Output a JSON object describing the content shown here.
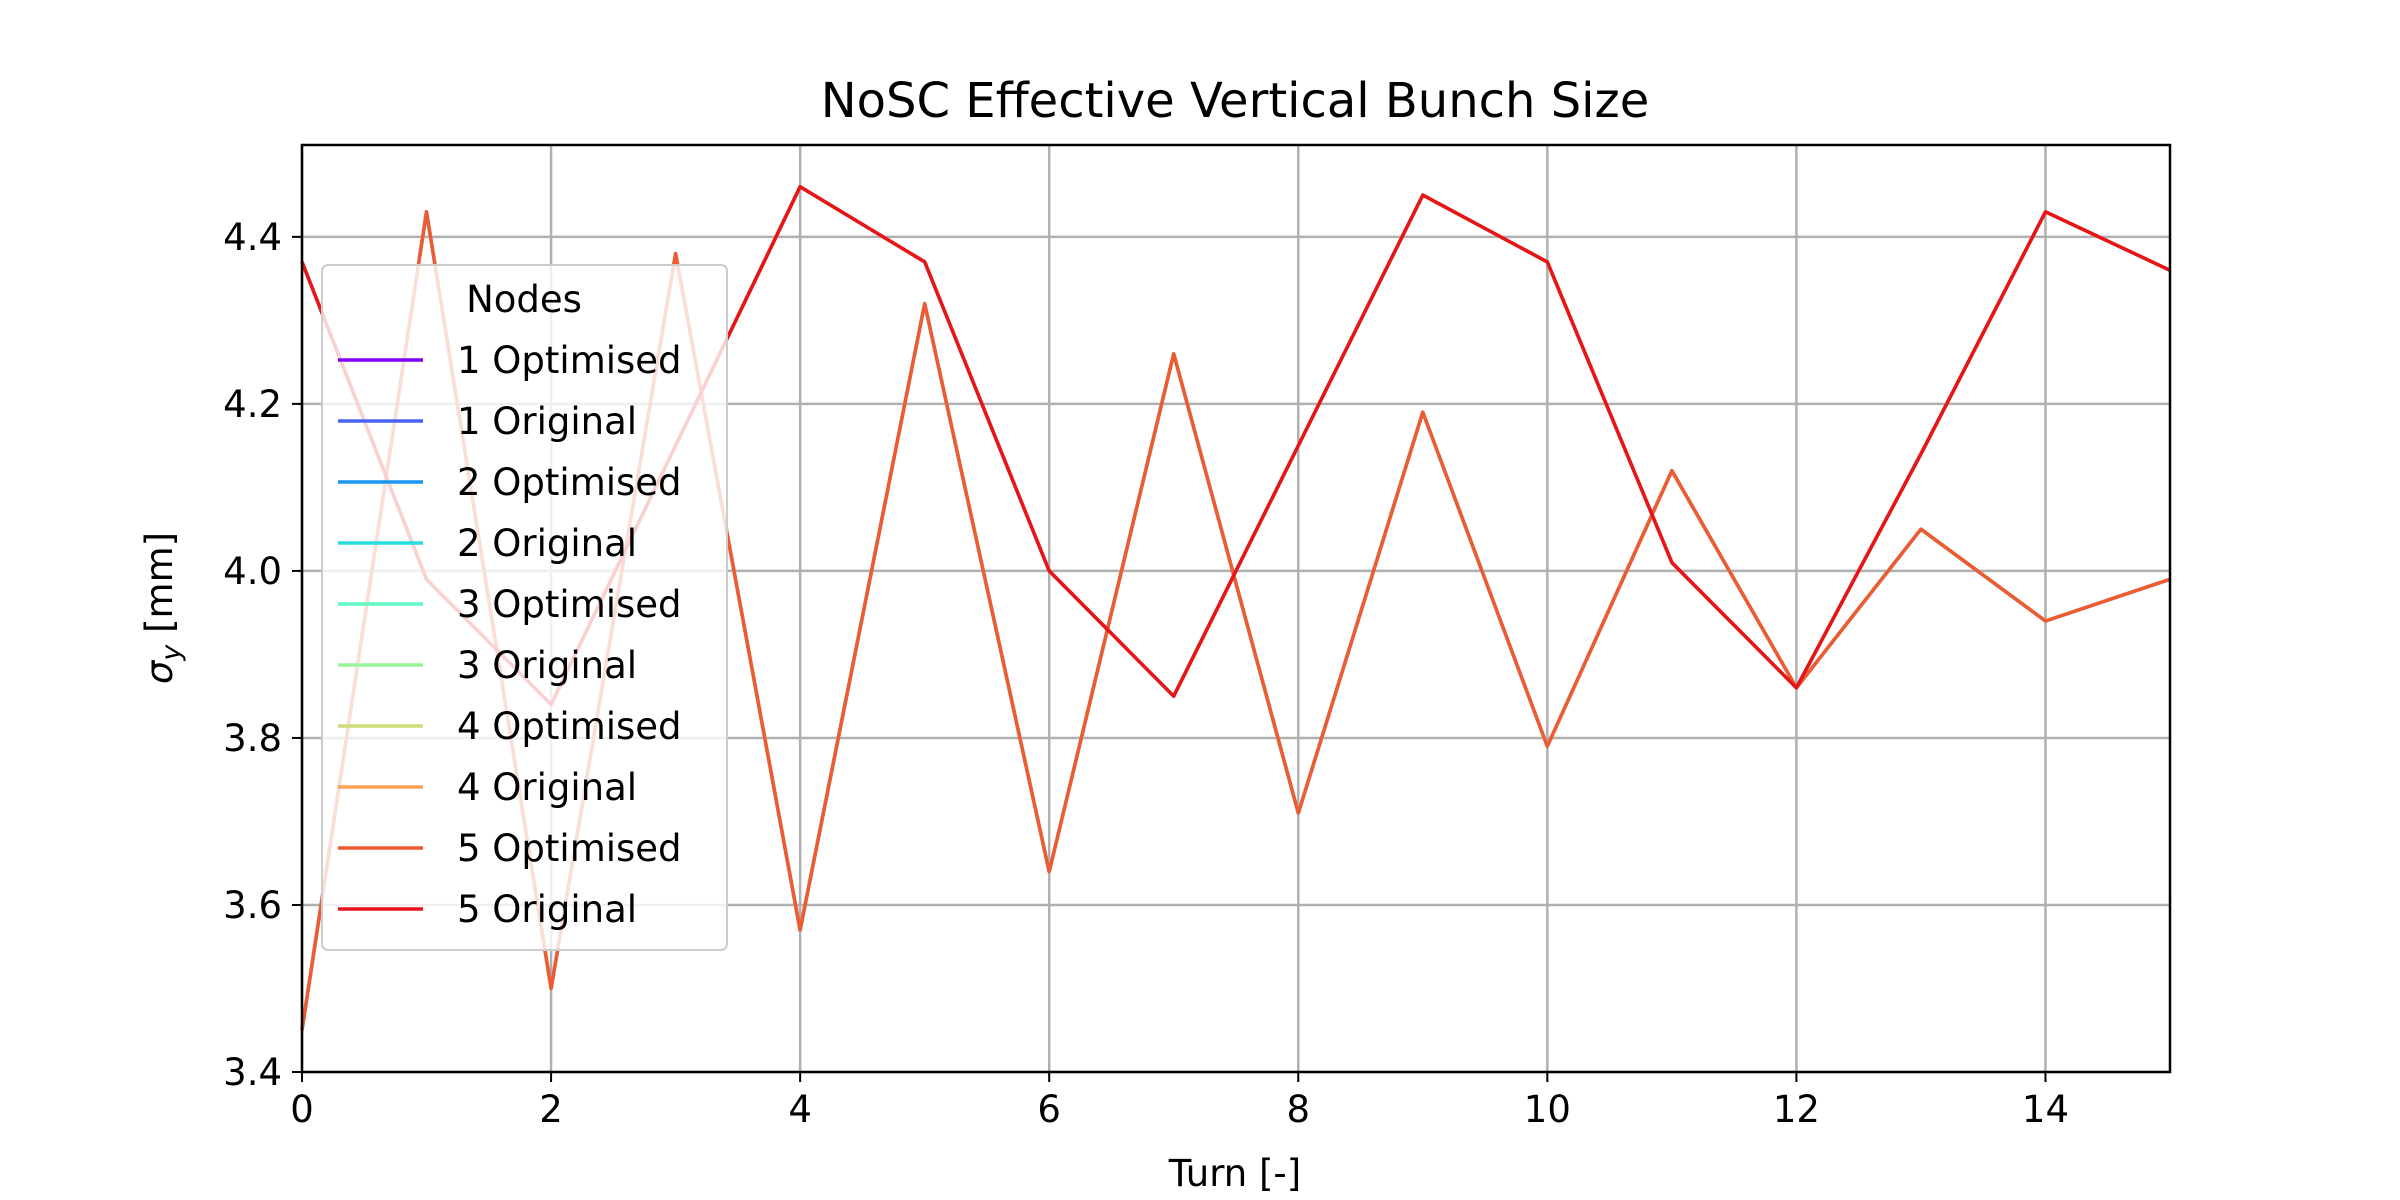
{
  "chart_data": {
    "type": "line",
    "title": "NoSC Effective Vertical Bunch Size",
    "xlabel": "Turn [-]",
    "ylabel_symbol": "σ",
    "ylabel_subscript": "y",
    "ylabel_unit": " [mm]",
    "xlim": [
      0,
      15
    ],
    "ylim": [
      3.4,
      4.51
    ],
    "xticks": [
      "0",
      "2",
      "4",
      "6",
      "8",
      "10",
      "12",
      "14"
    ],
    "xtick_values": [
      0,
      2,
      4,
      6,
      8,
      10,
      12,
      14
    ],
    "yticks": [
      "3.4",
      "3.6",
      "3.8",
      "4.0",
      "4.2",
      "4.4"
    ],
    "ytick_values": [
      3.4,
      3.6,
      3.8,
      4.0,
      4.2,
      4.4
    ],
    "grid": true,
    "legend_title": "Nodes",
    "legend_position": "left",
    "x": [
      0,
      1,
      2,
      3,
      4,
      5,
      6,
      7,
      8,
      9,
      10,
      11,
      12,
      13,
      14,
      15
    ],
    "series": [
      {
        "name": "1 Optimised",
        "color": "#7f00ff",
        "values": [
          3.45,
          4.43,
          3.5,
          4.38,
          3.57,
          4.32,
          3.64,
          4.26,
          3.71,
          4.19,
          3.79,
          4.12,
          3.86,
          4.05,
          3.94,
          3.99
        ]
      },
      {
        "name": "1 Original",
        "color": "#4a62f4",
        "values": [
          4.37,
          3.99,
          3.84,
          4.15,
          4.46,
          4.37,
          4.0,
          3.85,
          4.15,
          4.45,
          4.37,
          4.01,
          3.86,
          4.14,
          4.43,
          4.36
        ]
      },
      {
        "name": "2 Optimised",
        "color": "#1996f0",
        "values": [
          3.45,
          4.43,
          3.5,
          4.38,
          3.57,
          4.32,
          3.64,
          4.26,
          3.71,
          4.19,
          3.79,
          4.12,
          3.86,
          4.05,
          3.94,
          3.99
        ]
      },
      {
        "name": "2 Original",
        "color": "#2adcdc",
        "values": [
          4.37,
          3.99,
          3.84,
          4.15,
          4.46,
          4.37,
          4.0,
          3.85,
          4.15,
          4.45,
          4.37,
          4.01,
          3.86,
          4.14,
          4.43,
          4.36
        ]
      },
      {
        "name": "3 Optimised",
        "color": "#62fac2",
        "values": [
          3.45,
          4.43,
          3.5,
          4.38,
          3.57,
          4.32,
          3.64,
          4.26,
          3.71,
          4.19,
          3.79,
          4.12,
          3.86,
          4.05,
          3.94,
          3.99
        ]
      },
      {
        "name": "3 Original",
        "color": "#98f498",
        "values": [
          4.37,
          3.99,
          3.84,
          4.15,
          4.46,
          4.37,
          4.0,
          3.85,
          4.15,
          4.45,
          4.37,
          4.01,
          3.86,
          4.14,
          4.43,
          4.36
        ]
      },
      {
        "name": "4 Optimised",
        "color": "#cfdc7a",
        "values": [
          3.45,
          4.43,
          3.5,
          4.38,
          3.57,
          4.32,
          3.64,
          4.26,
          3.71,
          4.19,
          3.79,
          4.12,
          3.86,
          4.05,
          3.94,
          3.99
        ]
      },
      {
        "name": "4 Original",
        "color": "#ffa256",
        "values": [
          4.37,
          3.99,
          3.84,
          4.15,
          4.46,
          4.37,
          4.0,
          3.85,
          4.15,
          4.45,
          4.37,
          4.01,
          3.86,
          4.14,
          4.43,
          4.36
        ]
      },
      {
        "name": "5 Optimised",
        "color": "#f05a32",
        "values": [
          3.45,
          4.43,
          3.5,
          4.38,
          3.57,
          4.32,
          3.64,
          4.26,
          3.71,
          4.19,
          3.79,
          4.12,
          3.86,
          4.05,
          3.94,
          3.99
        ]
      },
      {
        "name": "5 Original",
        "color": "#e8141a",
        "values": [
          4.37,
          3.99,
          3.84,
          4.15,
          4.46,
          4.37,
          4.0,
          3.85,
          4.15,
          4.45,
          4.37,
          4.01,
          3.86,
          4.14,
          4.43,
          4.36
        ]
      }
    ]
  }
}
